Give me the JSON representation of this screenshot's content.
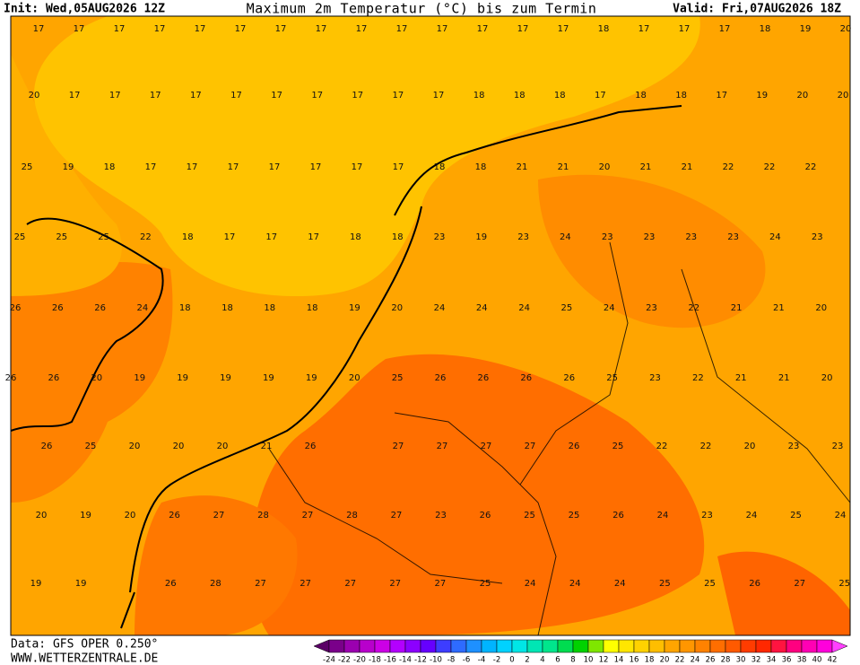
{
  "header": {
    "init": "Init: Wed,05AUG2026 12Z",
    "title": "Maximum 2m Temperatur (°C) bis zum Termin",
    "valid": "Valid: Fri,07AUG2026 18Z"
  },
  "footer": {
    "source": "Data: GFS OPER 0.250°",
    "url": "WWW.WETTERZENTRALE.DE"
  },
  "map": {
    "rows": [
      [
        17,
        17,
        17,
        17,
        17,
        17,
        17,
        17,
        17,
        17,
        17,
        17,
        17,
        17,
        18,
        17,
        17,
        17,
        18,
        19,
        20
      ],
      [
        20,
        17,
        17,
        17,
        17,
        17,
        17,
        17,
        17,
        17,
        17,
        18,
        18,
        18,
        17,
        18,
        18,
        17,
        19,
        20,
        20
      ],
      [
        25,
        19,
        18,
        17,
        17,
        17,
        17,
        17,
        17,
        17,
        18,
        18,
        21,
        21,
        20,
        21,
        21,
        22,
        22,
        22
      ],
      [
        25,
        25,
        25,
        22,
        18,
        17,
        17,
        17,
        18,
        18,
        23,
        19,
        23,
        24,
        23,
        23,
        23,
        23,
        24,
        23
      ],
      [
        26,
        26,
        26,
        24,
        18,
        18,
        18,
        18,
        19,
        20,
        24,
        24,
        24,
        25,
        24,
        23,
        22,
        21,
        21,
        20
      ],
      [
        26,
        26,
        20,
        19,
        19,
        19,
        19,
        19,
        20,
        25,
        26,
        26,
        26,
        26,
        25,
        23,
        22,
        21,
        21,
        20
      ],
      [
        26,
        25,
        20,
        20,
        20,
        21,
        26,
        null,
        27,
        27,
        27,
        27,
        26,
        25,
        22,
        22,
        20,
        23,
        23
      ],
      [
        20,
        19,
        20,
        26,
        27,
        28,
        27,
        28,
        27,
        23,
        26,
        25,
        25,
        26,
        24,
        23,
        24,
        25,
        24
      ],
      [
        19,
        19,
        null,
        26,
        28,
        27,
        27,
        27,
        27,
        27,
        25,
        24,
        24,
        24,
        25,
        25,
        26,
        27,
        25
      ]
    ]
  },
  "colorbar": {
    "labels": [
      -24,
      -22,
      -20,
      -18,
      -16,
      -14,
      -12,
      -10,
      -8,
      -6,
      -4,
      -2,
      0,
      2,
      4,
      6,
      8,
      10,
      12,
      14,
      16,
      18,
      20,
      22,
      24,
      26,
      28,
      30,
      32,
      34,
      36,
      38,
      40,
      42
    ],
    "colors": [
      "#5a0066",
      "#7a008a",
      "#9b00b0",
      "#b800cc",
      "#cc00e6",
      "#b300ff",
      "#8c00ff",
      "#6600ff",
      "#3d3dff",
      "#2e6bff",
      "#1e90ff",
      "#00b4ff",
      "#00d2ff",
      "#00e6e6",
      "#00e6b4",
      "#00e68c",
      "#00dc50",
      "#00d200",
      "#7fe600",
      "#ffff00",
      "#ffe600",
      "#ffd200",
      "#ffbe00",
      "#ffa500",
      "#ff9600",
      "#ff8200",
      "#ff6e00",
      "#ff5a00",
      "#ff3c00",
      "#ff2800",
      "#ff1440",
      "#ff0080",
      "#ff00b4",
      "#ff00dc",
      "#ff40ff"
    ]
  }
}
